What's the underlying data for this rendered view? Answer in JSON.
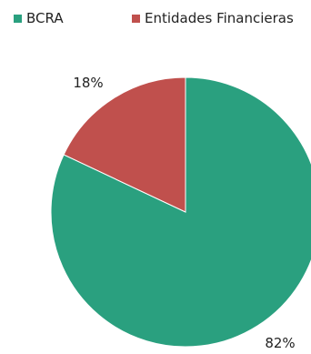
{
  "chart_data": {
    "type": "pie",
    "title": "",
    "legend_position": "top",
    "slices": [
      {
        "label": "BCRA",
        "value": 82,
        "value_label": "82%",
        "color": "#2aa07f"
      },
      {
        "label": "Entidades Financieras",
        "value": 18,
        "value_label": "18%",
        "color": "#c0504d"
      }
    ]
  }
}
